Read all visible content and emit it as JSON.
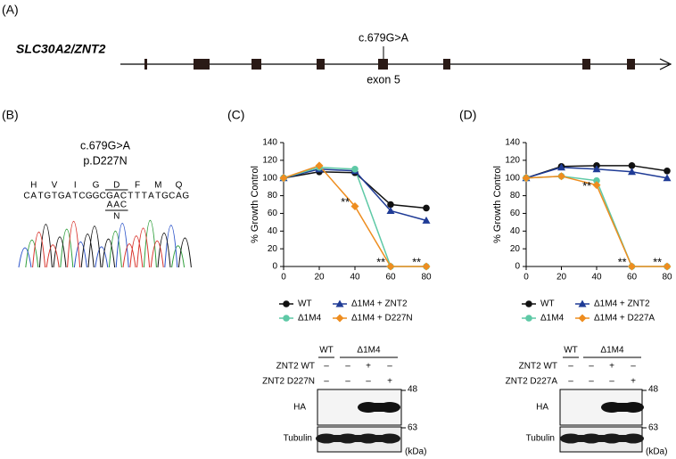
{
  "panel_a": {
    "label": "(A)",
    "gene": "SLC30A2/ZNT2",
    "variant": "c.679G>A",
    "exon": "exon 5"
  },
  "panel_b": {
    "label": "(B)",
    "variant": "c.679G>A",
    "protein": "p.D227N",
    "amino_acids": [
      "H",
      "V",
      "I",
      "G",
      "D",
      "F",
      "M",
      "Q"
    ],
    "bases": [
      "C",
      "A",
      "T",
      "G",
      "T",
      "G",
      "A",
      "T",
      "C",
      "G",
      "G",
      "C",
      "G",
      "A",
      "C",
      "T",
      "T",
      "T",
      "A",
      "T",
      "G",
      "C",
      "A",
      "G"
    ],
    "alt_bases": [
      "A",
      "A",
      "C"
    ],
    "alt_amino_acid": "N",
    "base_colors": {
      "A": "#2e9e3a",
      "C": "#2a52c9",
      "G": "#111111",
      "T": "#d8322a"
    }
  },
  "chart_data": [
    {
      "type": "line",
      "panel_label": "(C)",
      "y_label": "% Growth Control",
      "x": [
        0,
        20,
        40,
        60,
        80
      ],
      "xlim": [
        0,
        80
      ],
      "xticks": [
        0,
        20,
        40,
        60,
        80
      ],
      "ylim": [
        0,
        140
      ],
      "yticks": [
        0,
        20,
        40,
        60,
        80,
        100,
        120,
        140
      ],
      "series": [
        {
          "name": "WT",
          "color": "#111111",
          "marker": "circle",
          "values": [
            100,
            107,
            106,
            70,
            66
          ]
        },
        {
          "name": "Δ1M4 + ZNT2",
          "color": "#1f3b96",
          "marker": "triangle",
          "values": [
            100,
            110,
            108,
            63,
            52
          ]
        },
        {
          "name": "Δ1M4",
          "color": "#5ec9a6",
          "marker": "circle",
          "values": [
            100,
            112,
            110,
            0,
            0
          ]
        },
        {
          "name": "Δ1M4 + D227N",
          "color": "#ee8d1f",
          "marker": "diamond",
          "values": [
            100,
            114,
            68,
            0,
            0
          ]
        }
      ],
      "annotations": [
        {
          "text": "**",
          "x": 40,
          "y": 68
        },
        {
          "text": "**",
          "x": 60,
          "y": 0
        },
        {
          "text": "**",
          "x": 80,
          "y": 0
        }
      ]
    },
    {
      "type": "line",
      "panel_label": "(D)",
      "y_label": "% Growth Control",
      "x": [
        0,
        20,
        40,
        60,
        80
      ],
      "xlim": [
        0,
        80
      ],
      "xticks": [
        0,
        20,
        40,
        60,
        80
      ],
      "ylim": [
        0,
        140
      ],
      "yticks": [
        0,
        20,
        40,
        60,
        80,
        100,
        120,
        140
      ],
      "series": [
        {
          "name": "WT",
          "color": "#111111",
          "marker": "circle",
          "values": [
            100,
            113,
            114,
            114,
            108
          ]
        },
        {
          "name": "Δ1M4 + ZNT2",
          "color": "#1f3b96",
          "marker": "triangle",
          "values": [
            100,
            112,
            110,
            107,
            100
          ]
        },
        {
          "name": "Δ1M4",
          "color": "#5ec9a6",
          "marker": "circle",
          "values": [
            100,
            102,
            97,
            0,
            0
          ]
        },
        {
          "name": "Δ1M4 + D227A",
          "color": "#ee8d1f",
          "marker": "diamond",
          "values": [
            100,
            102,
            92,
            0,
            0
          ]
        }
      ],
      "annotations": [
        {
          "text": "**",
          "x": 40,
          "y": 86
        },
        {
          "text": "**",
          "x": 60,
          "y": 0
        },
        {
          "text": "**",
          "x": 80,
          "y": 0
        }
      ]
    }
  ],
  "blots": [
    {
      "groups": [
        "WT",
        "Δ1M4"
      ],
      "rows": [
        {
          "label": "ZNT2 WT",
          "signs": [
            "–",
            "–",
            "+",
            "–"
          ]
        },
        {
          "label": "ZNT2 D227N",
          "signs": [
            "–",
            "–",
            "–",
            "+"
          ]
        }
      ],
      "bands": [
        "HA",
        "Tubulin"
      ],
      "markers": [
        "48",
        "63"
      ],
      "unit": "(kDa)"
    },
    {
      "groups": [
        "WT",
        "Δ1M4"
      ],
      "rows": [
        {
          "label": "ZNT2 WT",
          "signs": [
            "–",
            "–",
            "+",
            "–"
          ]
        },
        {
          "label": "ZNT2 D227A",
          "signs": [
            "–",
            "–",
            "–",
            "+"
          ]
        }
      ],
      "bands": [
        "HA",
        "Tubulin"
      ],
      "markers": [
        "48",
        "63"
      ],
      "unit": "(kDa)"
    }
  ]
}
